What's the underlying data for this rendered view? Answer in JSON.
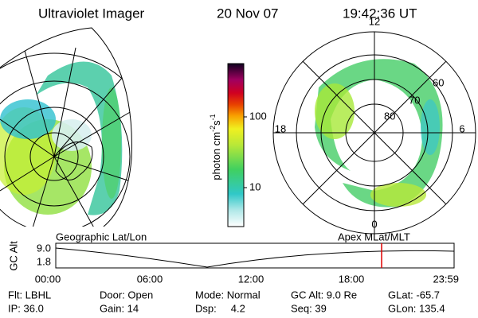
{
  "header": {
    "title": "Ultraviolet Imager",
    "date": "20 Nov 07",
    "time": "19:42:36 UT"
  },
  "left_image": {
    "label": "Geographic Lat/Lon"
  },
  "right_image": {
    "label": "Apex  MLat/MLT",
    "mlt_labels": [
      "12",
      "18",
      "6",
      "0"
    ],
    "lat_labels": [
      "60",
      "70",
      "80"
    ]
  },
  "colorbar": {
    "unit": "photon cm",
    "exp1": "-2",
    "unit2": "s",
    "exp2": "-1",
    "tick_labels": [
      "100",
      "10"
    ]
  },
  "timeline": {
    "axis_label": "GC Alt",
    "y_labels": [
      "9.0",
      "1.8"
    ],
    "x_labels": [
      "00:00",
      "06:00",
      "12:00",
      "18:00",
      "23:59"
    ]
  },
  "footer": {
    "rows": [
      [
        "Flt: LBHL",
        "Door: Open",
        "Mode: Normal",
        "GC Alt: 9.0 Re",
        "GLat: -65.7"
      ],
      [
        "IP: 36.0",
        "Gain: 14",
        "Dsp:     4.2",
        "Seq: 39",
        "GLon: 135.4"
      ]
    ]
  }
}
